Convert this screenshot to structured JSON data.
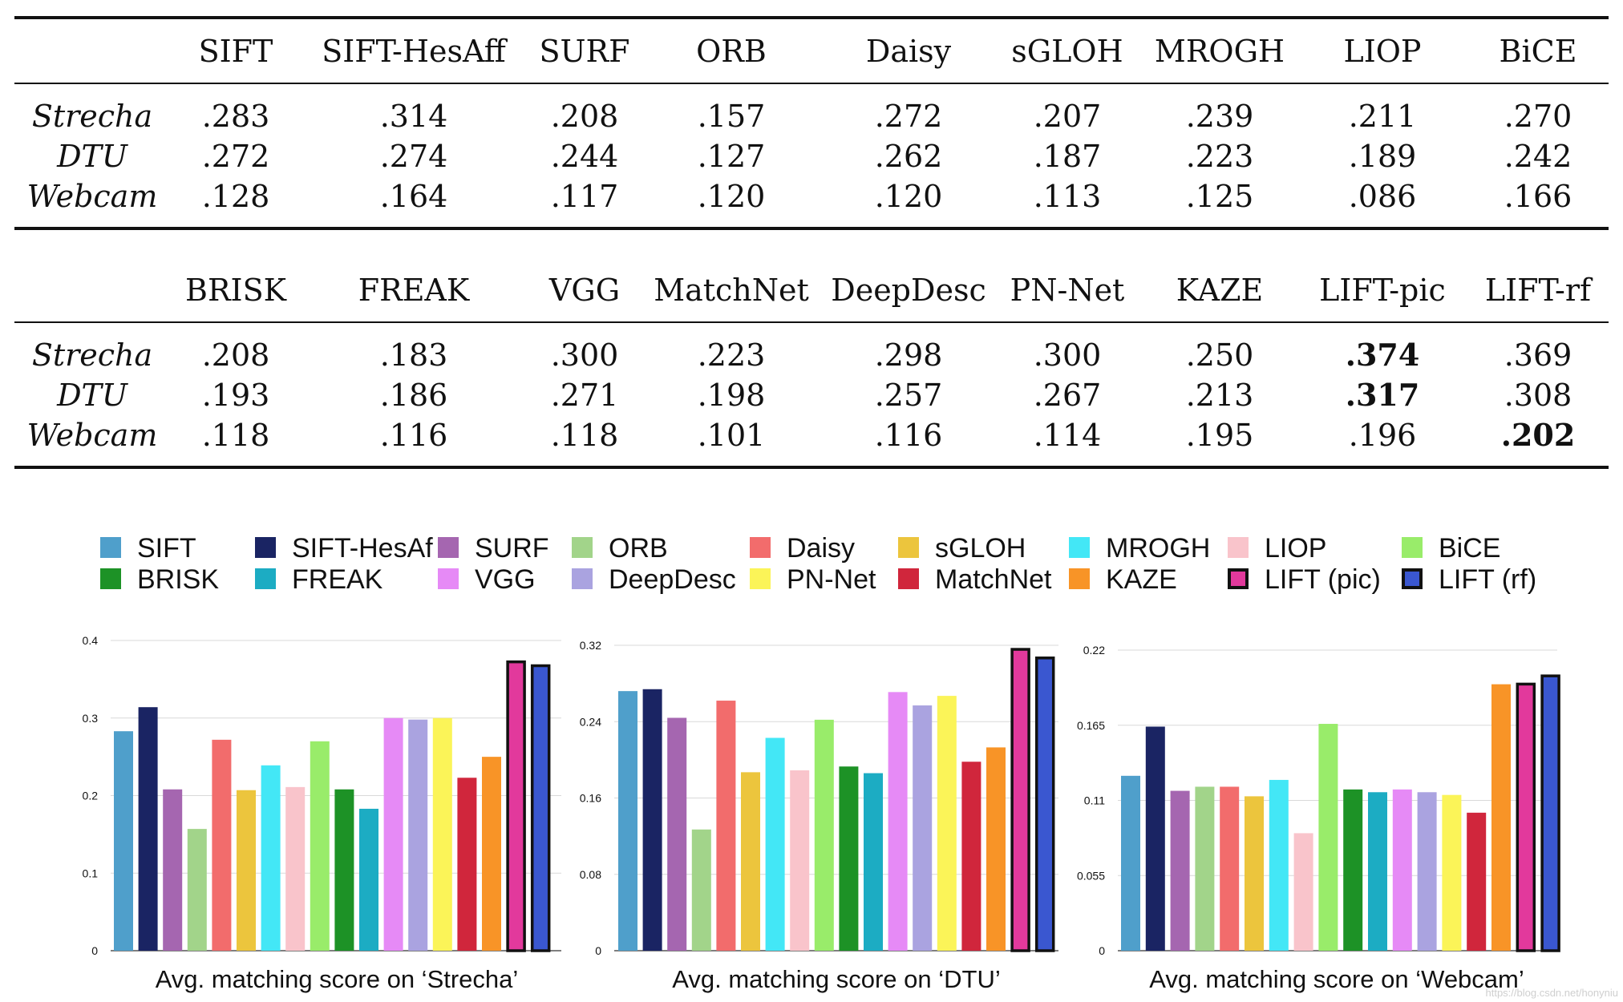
{
  "tables": [
    {
      "columns": [
        "SIFT",
        "SIFT-HesAff",
        "SURF",
        "ORB",
        "Daisy",
        "sGLOH",
        "MROGH",
        "LIOP",
        "BiCE"
      ],
      "rows": [
        {
          "label": "Strecha",
          "values": [
            ".283",
            ".314",
            ".208",
            ".157",
            ".272",
            ".207",
            ".239",
            ".211",
            ".270"
          ],
          "bold": []
        },
        {
          "label": "DTU",
          "values": [
            ".272",
            ".274",
            ".244",
            ".127",
            ".262",
            ".187",
            ".223",
            ".189",
            ".242"
          ],
          "bold": []
        },
        {
          "label": "Webcam",
          "values": [
            ".128",
            ".164",
            ".117",
            ".120",
            ".120",
            ".113",
            ".125",
            ".086",
            ".166"
          ],
          "bold": []
        }
      ]
    },
    {
      "columns": [
        "BRISK",
        "FREAK",
        "VGG",
        "MatchNet",
        "DeepDesc",
        "PN-Net",
        "KAZE",
        "LIFT-pic",
        "LIFT-rf"
      ],
      "rows": [
        {
          "label": "Strecha",
          "values": [
            ".208",
            ".183",
            ".300",
            ".223",
            ".298",
            ".300",
            ".250",
            ".374",
            ".369"
          ],
          "bold": [
            7
          ]
        },
        {
          "label": "DTU",
          "values": [
            ".193",
            ".186",
            ".271",
            ".198",
            ".257",
            ".267",
            ".213",
            ".317",
            ".308"
          ],
          "bold": [
            7
          ]
        },
        {
          "label": "Webcam",
          "values": [
            ".118",
            ".116",
            ".118",
            ".101",
            ".116",
            ".114",
            ".195",
            ".196",
            ".202"
          ],
          "bold": [
            8
          ]
        }
      ]
    }
  ],
  "legend": [
    {
      "name": "SIFT",
      "color": "#4f9fcb"
    },
    {
      "name": "SIFT-HesAf",
      "color": "#1a2463"
    },
    {
      "name": "SURF",
      "color": "#a566b0"
    },
    {
      "name": "ORB",
      "color": "#a2d48a"
    },
    {
      "name": "Daisy",
      "color": "#f26c6c"
    },
    {
      "name": "sGLOH",
      "color": "#ecc53d"
    },
    {
      "name": "MROGH",
      "color": "#43e7f6"
    },
    {
      "name": "LIOP",
      "color": "#f9c4cb"
    },
    {
      "name": "BiCE",
      "color": "#99ec6a"
    },
    {
      "name": "BRISK",
      "color": "#1d9226"
    },
    {
      "name": "FREAK",
      "color": "#1cacc3"
    },
    {
      "name": "VGG",
      "color": "#e68af6"
    },
    {
      "name": "DeepDesc",
      "color": "#aaa3e0"
    },
    {
      "name": "PN-Net",
      "color": "#fbf458"
    },
    {
      "name": "MatchNet",
      "color": "#d0263c"
    },
    {
      "name": "KAZE",
      "color": "#f89427"
    },
    {
      "name": "LIFT (pic)",
      "color": "#e2399c",
      "outlined": true
    },
    {
      "name": "LIFT (rf)",
      "color": "#3a57d0",
      "outlined": true
    }
  ],
  "chart_data": [
    {
      "type": "bar",
      "title": "Avg. matching score on ‘Strecha’",
      "categories": [
        "SIFT",
        "SIFT-HesAf",
        "SURF",
        "ORB",
        "Daisy",
        "sGLOH",
        "MROGH",
        "LIOP",
        "BiCE",
        "BRISK",
        "FREAK",
        "VGG",
        "DeepDesc",
        "PN-Net",
        "MatchNet",
        "KAZE",
        "LIFT (pic)",
        "LIFT (rf)"
      ],
      "values": [
        0.283,
        0.314,
        0.208,
        0.157,
        0.272,
        0.207,
        0.239,
        0.211,
        0.27,
        0.208,
        0.183,
        0.3,
        0.298,
        0.3,
        0.223,
        0.25,
        0.374,
        0.369
      ],
      "ylim": [
        0,
        0.4
      ],
      "yticks": [
        "0",
        "0.1",
        "0.2",
        "0.3",
        "0.4"
      ]
    },
    {
      "type": "bar",
      "title": "Avg. matching score on ‘DTU’",
      "categories": [
        "SIFT",
        "SIFT-HesAf",
        "SURF",
        "ORB",
        "Daisy",
        "sGLOH",
        "MROGH",
        "LIOP",
        "BiCE",
        "BRISK",
        "FREAK",
        "VGG",
        "DeepDesc",
        "PN-Net",
        "MatchNet",
        "KAZE",
        "LIFT (pic)",
        "LIFT (rf)"
      ],
      "values": [
        0.272,
        0.274,
        0.244,
        0.127,
        0.262,
        0.187,
        0.223,
        0.189,
        0.242,
        0.193,
        0.186,
        0.271,
        0.257,
        0.267,
        0.198,
        0.213,
        0.317,
        0.308
      ],
      "ylim": [
        0,
        0.32
      ],
      "yticks": [
        "0",
        "0.08",
        "0.16",
        "0.24",
        "0.32"
      ]
    },
    {
      "type": "bar",
      "title": "Avg. matching score on ‘Webcam’",
      "categories": [
        "SIFT",
        "SIFT-HesAf",
        "SURF",
        "ORB",
        "Daisy",
        "sGLOH",
        "MROGH",
        "LIOP",
        "BiCE",
        "BRISK",
        "FREAK",
        "VGG",
        "DeepDesc",
        "PN-Net",
        "MatchNet",
        "KAZE",
        "LIFT (pic)",
        "LIFT (rf)"
      ],
      "values": [
        0.128,
        0.164,
        0.117,
        0.12,
        0.12,
        0.113,
        0.125,
        0.086,
        0.166,
        0.118,
        0.116,
        0.118,
        0.116,
        0.114,
        0.101,
        0.195,
        0.196,
        0.202
      ],
      "ylim": [
        0,
        0.22
      ],
      "yticks": [
        "0",
        "0.055",
        "0.11",
        "0.165",
        "0.22"
      ]
    }
  ],
  "watermark": "https://blog.csdn.net/honyniu"
}
